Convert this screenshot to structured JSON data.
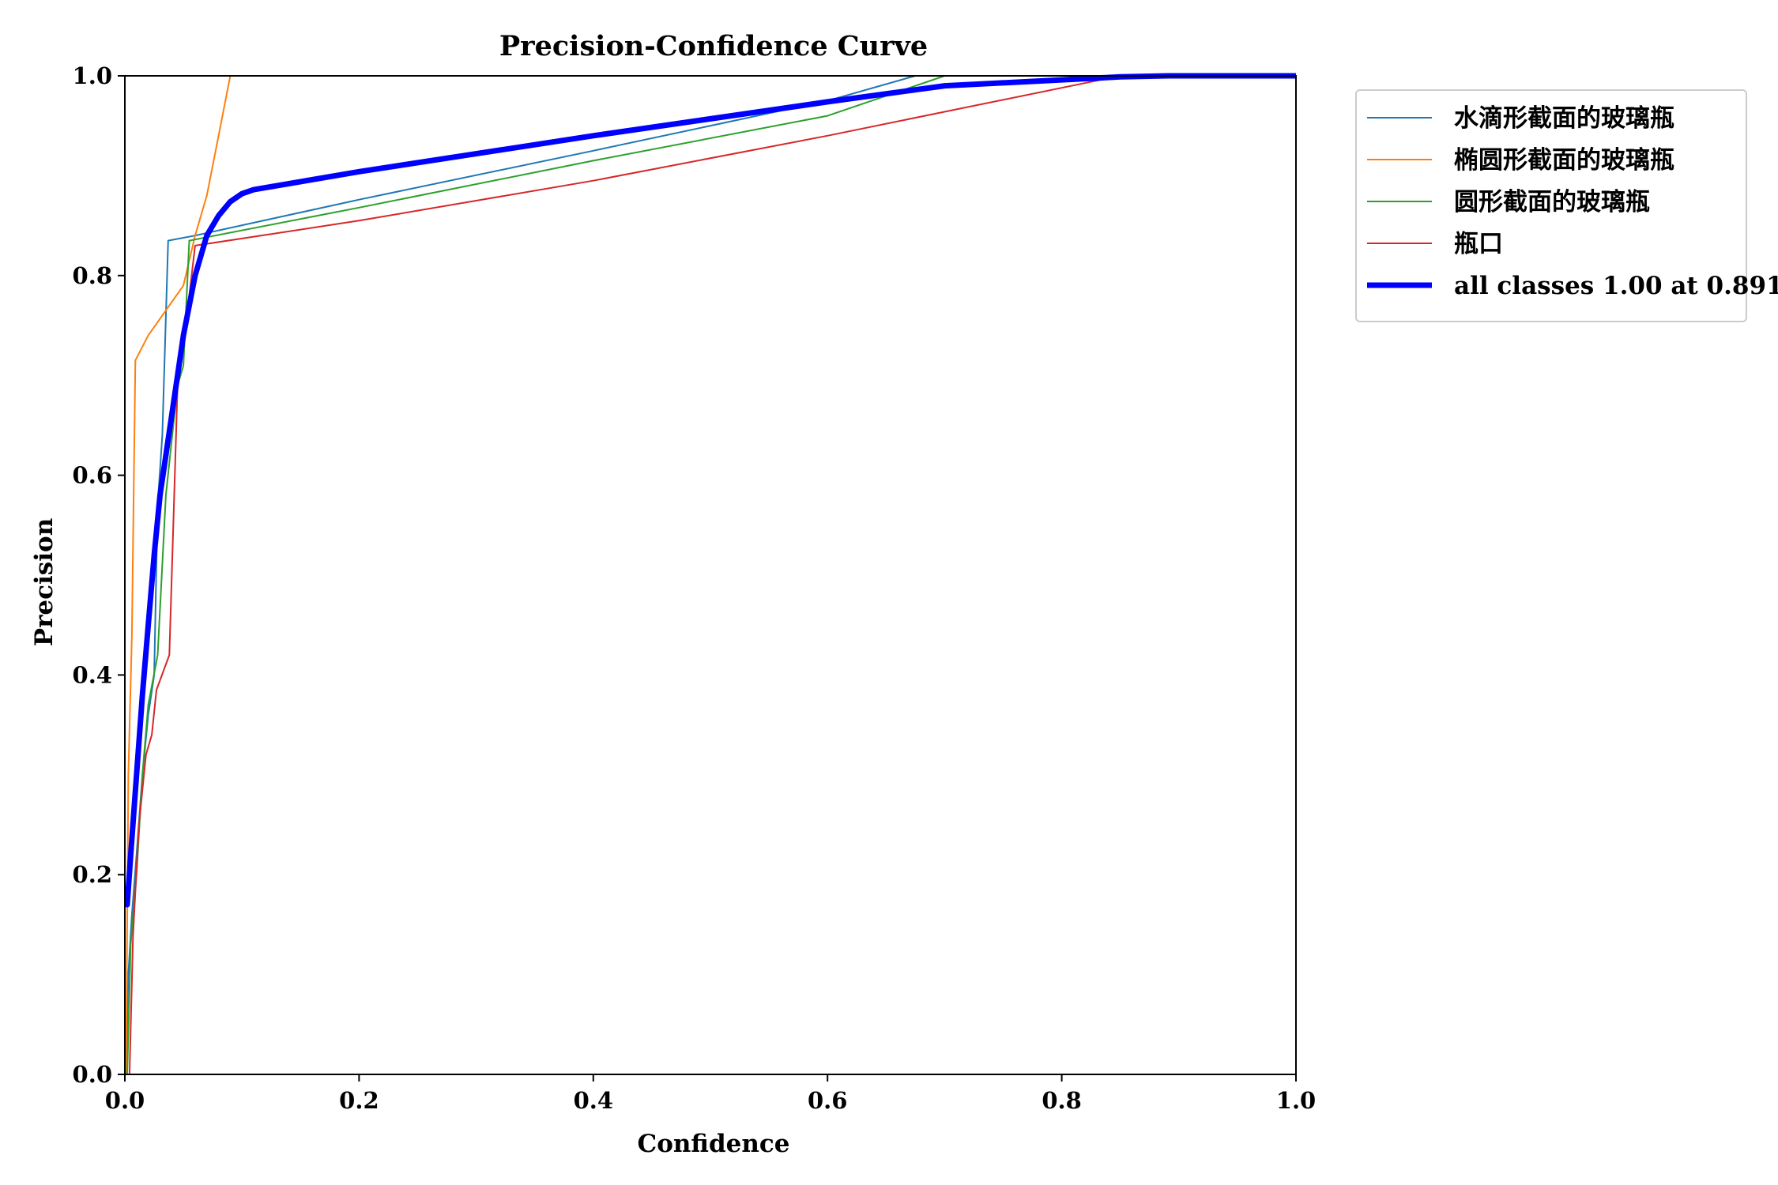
{
  "chart_data": {
    "type": "line",
    "title": "Precision-Confidence Curve",
    "xlabel": "Confidence",
    "ylabel": "Precision",
    "xlim": [
      0,
      1
    ],
    "ylim": [
      0,
      1
    ],
    "xticks": [
      "0.0",
      "0.2",
      "0.4",
      "0.6",
      "0.8",
      "1.0"
    ],
    "yticks": [
      "0.0",
      "0.2",
      "0.4",
      "0.6",
      "0.8",
      "1.0"
    ],
    "grid": false,
    "legend_position": "outside-top-right",
    "series": [
      {
        "name": "水滴形截面的玻璃瓶",
        "color": "#1f77b4",
        "width": 2,
        "points": [
          [
            0.001,
            0.0
          ],
          [
            0.003,
            0.1
          ],
          [
            0.006,
            0.16
          ],
          [
            0.01,
            0.22
          ],
          [
            0.015,
            0.3
          ],
          [
            0.02,
            0.36
          ],
          [
            0.025,
            0.4
          ],
          [
            0.028,
            0.57
          ],
          [
            0.032,
            0.64
          ],
          [
            0.037,
            0.835
          ],
          [
            0.06,
            0.84
          ],
          [
            0.2,
            0.876
          ],
          [
            0.4,
            0.925
          ],
          [
            0.6,
            0.975
          ],
          [
            0.675,
            1.0
          ],
          [
            1.0,
            1.0
          ]
        ]
      },
      {
        "name": "椭圆形截面的玻璃瓶",
        "color": "#ff7f0e",
        "width": 2,
        "points": [
          [
            0.001,
            0.0
          ],
          [
            0.003,
            0.3
          ],
          [
            0.006,
            0.44
          ],
          [
            0.009,
            0.715
          ],
          [
            0.02,
            0.74
          ],
          [
            0.05,
            0.79
          ],
          [
            0.06,
            0.84
          ],
          [
            0.07,
            0.88
          ],
          [
            0.08,
            0.94
          ],
          [
            0.09,
            1.0
          ],
          [
            1.0,
            1.0
          ]
        ]
      },
      {
        "name": "圆形截面的玻璃瓶",
        "color": "#2ca02c",
        "width": 2,
        "points": [
          [
            0.002,
            0.0
          ],
          [
            0.005,
            0.13
          ],
          [
            0.01,
            0.2
          ],
          [
            0.015,
            0.3
          ],
          [
            0.02,
            0.37
          ],
          [
            0.028,
            0.42
          ],
          [
            0.035,
            0.58
          ],
          [
            0.045,
            0.69
          ],
          [
            0.05,
            0.71
          ],
          [
            0.055,
            0.835
          ],
          [
            0.2,
            0.868
          ],
          [
            0.4,
            0.915
          ],
          [
            0.6,
            0.96
          ],
          [
            0.7,
            1.0
          ],
          [
            1.0,
            1.0
          ]
        ]
      },
      {
        "name": "瓶口",
        "color": "#d62728",
        "width": 2,
        "points": [
          [
            0.004,
            0.0
          ],
          [
            0.007,
            0.14
          ],
          [
            0.012,
            0.25
          ],
          [
            0.018,
            0.32
          ],
          [
            0.023,
            0.34
          ],
          [
            0.027,
            0.385
          ],
          [
            0.038,
            0.42
          ],
          [
            0.045,
            0.69
          ],
          [
            0.052,
            0.75
          ],
          [
            0.06,
            0.83
          ],
          [
            0.2,
            0.855
          ],
          [
            0.4,
            0.895
          ],
          [
            0.6,
            0.94
          ],
          [
            0.85,
            1.0
          ],
          [
            1.0,
            1.0
          ]
        ]
      },
      {
        "name": "all classes 1.00 at 0.891",
        "color": "#0000ff",
        "width": 7,
        "points": [
          [
            0.002,
            0.17
          ],
          [
            0.005,
            0.22
          ],
          [
            0.01,
            0.3
          ],
          [
            0.015,
            0.38
          ],
          [
            0.02,
            0.45
          ],
          [
            0.025,
            0.52
          ],
          [
            0.03,
            0.58
          ],
          [
            0.04,
            0.66
          ],
          [
            0.05,
            0.74
          ],
          [
            0.06,
            0.8
          ],
          [
            0.07,
            0.84
          ],
          [
            0.08,
            0.86
          ],
          [
            0.09,
            0.874
          ],
          [
            0.1,
            0.882
          ],
          [
            0.11,
            0.886
          ],
          [
            0.2,
            0.904
          ],
          [
            0.3,
            0.922
          ],
          [
            0.4,
            0.94
          ],
          [
            0.5,
            0.957
          ],
          [
            0.6,
            0.974
          ],
          [
            0.7,
            0.99
          ],
          [
            0.8,
            0.996
          ],
          [
            0.85,
            0.999
          ],
          [
            0.891,
            1.0
          ],
          [
            1.0,
            1.0
          ]
        ]
      }
    ]
  }
}
